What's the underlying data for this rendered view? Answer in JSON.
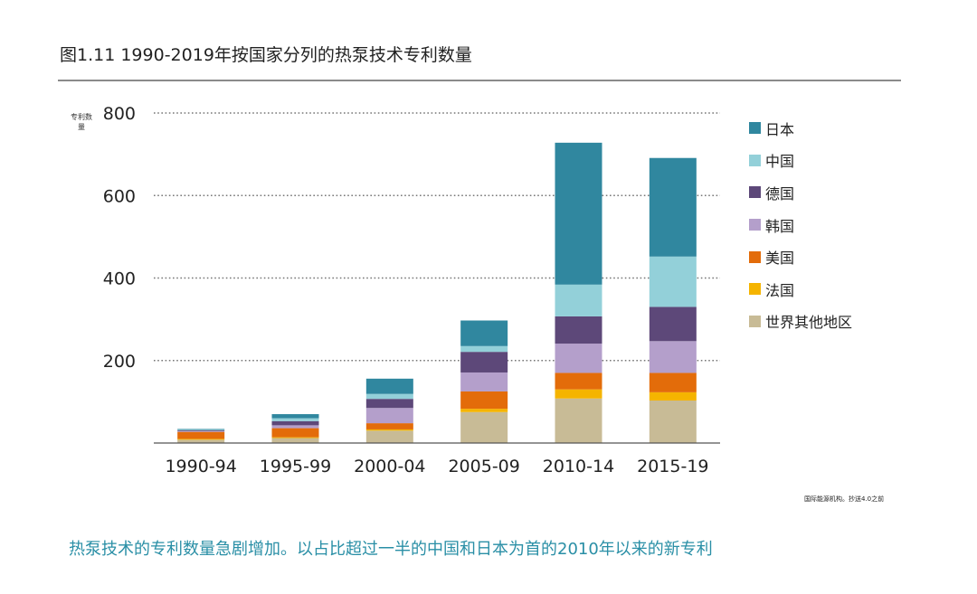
{
  "title": "图1.11 1990-2019年按国家分列的热泵技术专利数量",
  "caption": "热泵技术的专利数量急剧增加。以占比超过一半的中国和日本为首的2010年以来的新专利",
  "source": "国际能源机构。抄送4.0之前",
  "chart_data": {
    "type": "bar",
    "stacked": true,
    "title": "图1.11 1990-2019年按国家分列的热泵技术专利数量",
    "ylabel": "专利数量",
    "xlabel": "",
    "ylim": [
      0,
      800
    ],
    "yticks": [
      200,
      400,
      600,
      800
    ],
    "grid": "horizontal-dotted",
    "legend_position": "right",
    "categories": [
      "1990-94",
      "1995-99",
      "2000-04",
      "2005-09",
      "2010-14",
      "2015-19"
    ],
    "series": [
      {
        "name": "世界其他地区",
        "color": "#c8bb96",
        "values": [
          8,
          12,
          30,
          75,
          108,
          103
        ]
      },
      {
        "name": "法国",
        "color": "#f5b400",
        "values": [
          2,
          2,
          3,
          8,
          22,
          20
        ]
      },
      {
        "name": "美国",
        "color": "#e36c0a",
        "values": [
          17,
          22,
          15,
          42,
          40,
          47
        ]
      },
      {
        "name": "韩国",
        "color": "#b49fcb",
        "values": [
          2,
          7,
          37,
          46,
          71,
          77
        ]
      },
      {
        "name": "德国",
        "color": "#5d4879",
        "values": [
          2,
          10,
          22,
          50,
          66,
          83
        ]
      },
      {
        "name": "中国",
        "color": "#93d0d9",
        "values": [
          1,
          7,
          12,
          14,
          77,
          122
        ]
      },
      {
        "name": "日本",
        "color": "#30879f",
        "values": [
          2,
          10,
          37,
          62,
          344,
          239
        ]
      }
    ]
  }
}
